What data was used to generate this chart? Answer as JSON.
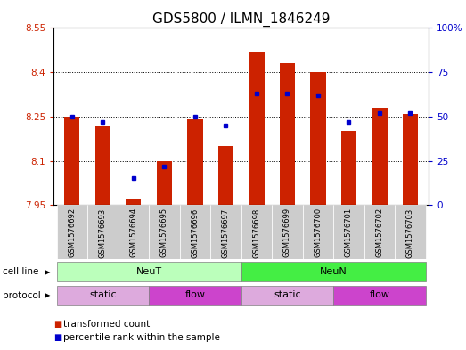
{
  "title": "GDS5800 / ILMN_1846249",
  "samples": [
    "GSM1576692",
    "GSM1576693",
    "GSM1576694",
    "GSM1576695",
    "GSM1576696",
    "GSM1576697",
    "GSM1576698",
    "GSM1576699",
    "GSM1576700",
    "GSM1576701",
    "GSM1576702",
    "GSM1576703"
  ],
  "bar_values": [
    8.25,
    8.22,
    7.97,
    8.1,
    8.24,
    8.15,
    8.47,
    8.43,
    8.4,
    8.2,
    8.28,
    8.26
  ],
  "dot_values_pct": [
    50,
    47,
    15,
    22,
    50,
    45,
    63,
    63,
    62,
    47,
    52,
    52
  ],
  "ymin": 7.95,
  "ymax": 8.55,
  "yticks": [
    7.95,
    8.1,
    8.25,
    8.4,
    8.55
  ],
  "ytick_labels": [
    "7.95",
    "8.1",
    "8.25",
    "8.4",
    "8.55"
  ],
  "right_yticks": [
    0,
    25,
    50,
    75,
    100
  ],
  "right_ytick_labels": [
    "0",
    "25",
    "50",
    "75",
    "100%"
  ],
  "bar_color": "#cc2200",
  "dot_color": "#0000cc",
  "cell_line_groups": [
    {
      "label": "NeuT",
      "start": 0,
      "end": 5,
      "color": "#bbffbb"
    },
    {
      "label": "NeuN",
      "start": 6,
      "end": 11,
      "color": "#44ee44"
    }
  ],
  "protocol_groups": [
    {
      "label": "static",
      "start": 0,
      "end": 2,
      "color": "#ddaadd"
    },
    {
      "label": "flow",
      "start": 3,
      "end": 5,
      "color": "#cc44cc"
    },
    {
      "label": "static",
      "start": 6,
      "end": 8,
      "color": "#ddaadd"
    },
    {
      "label": "flow",
      "start": 9,
      "end": 11,
      "color": "#cc44cc"
    }
  ],
  "cell_line_label": "cell line",
  "protocol_label": "protocol",
  "legend_items": [
    {
      "label": "transformed count",
      "color": "#cc2200"
    },
    {
      "label": "percentile rank within the sample",
      "color": "#0000cc"
    }
  ],
  "background_color": "#ffffff",
  "plot_bg_color": "#ffffff",
  "grid_color": "#000000",
  "sample_box_color": "#cccccc",
  "title_fontsize": 11,
  "tick_fontsize": 7.5,
  "bar_width": 0.5
}
